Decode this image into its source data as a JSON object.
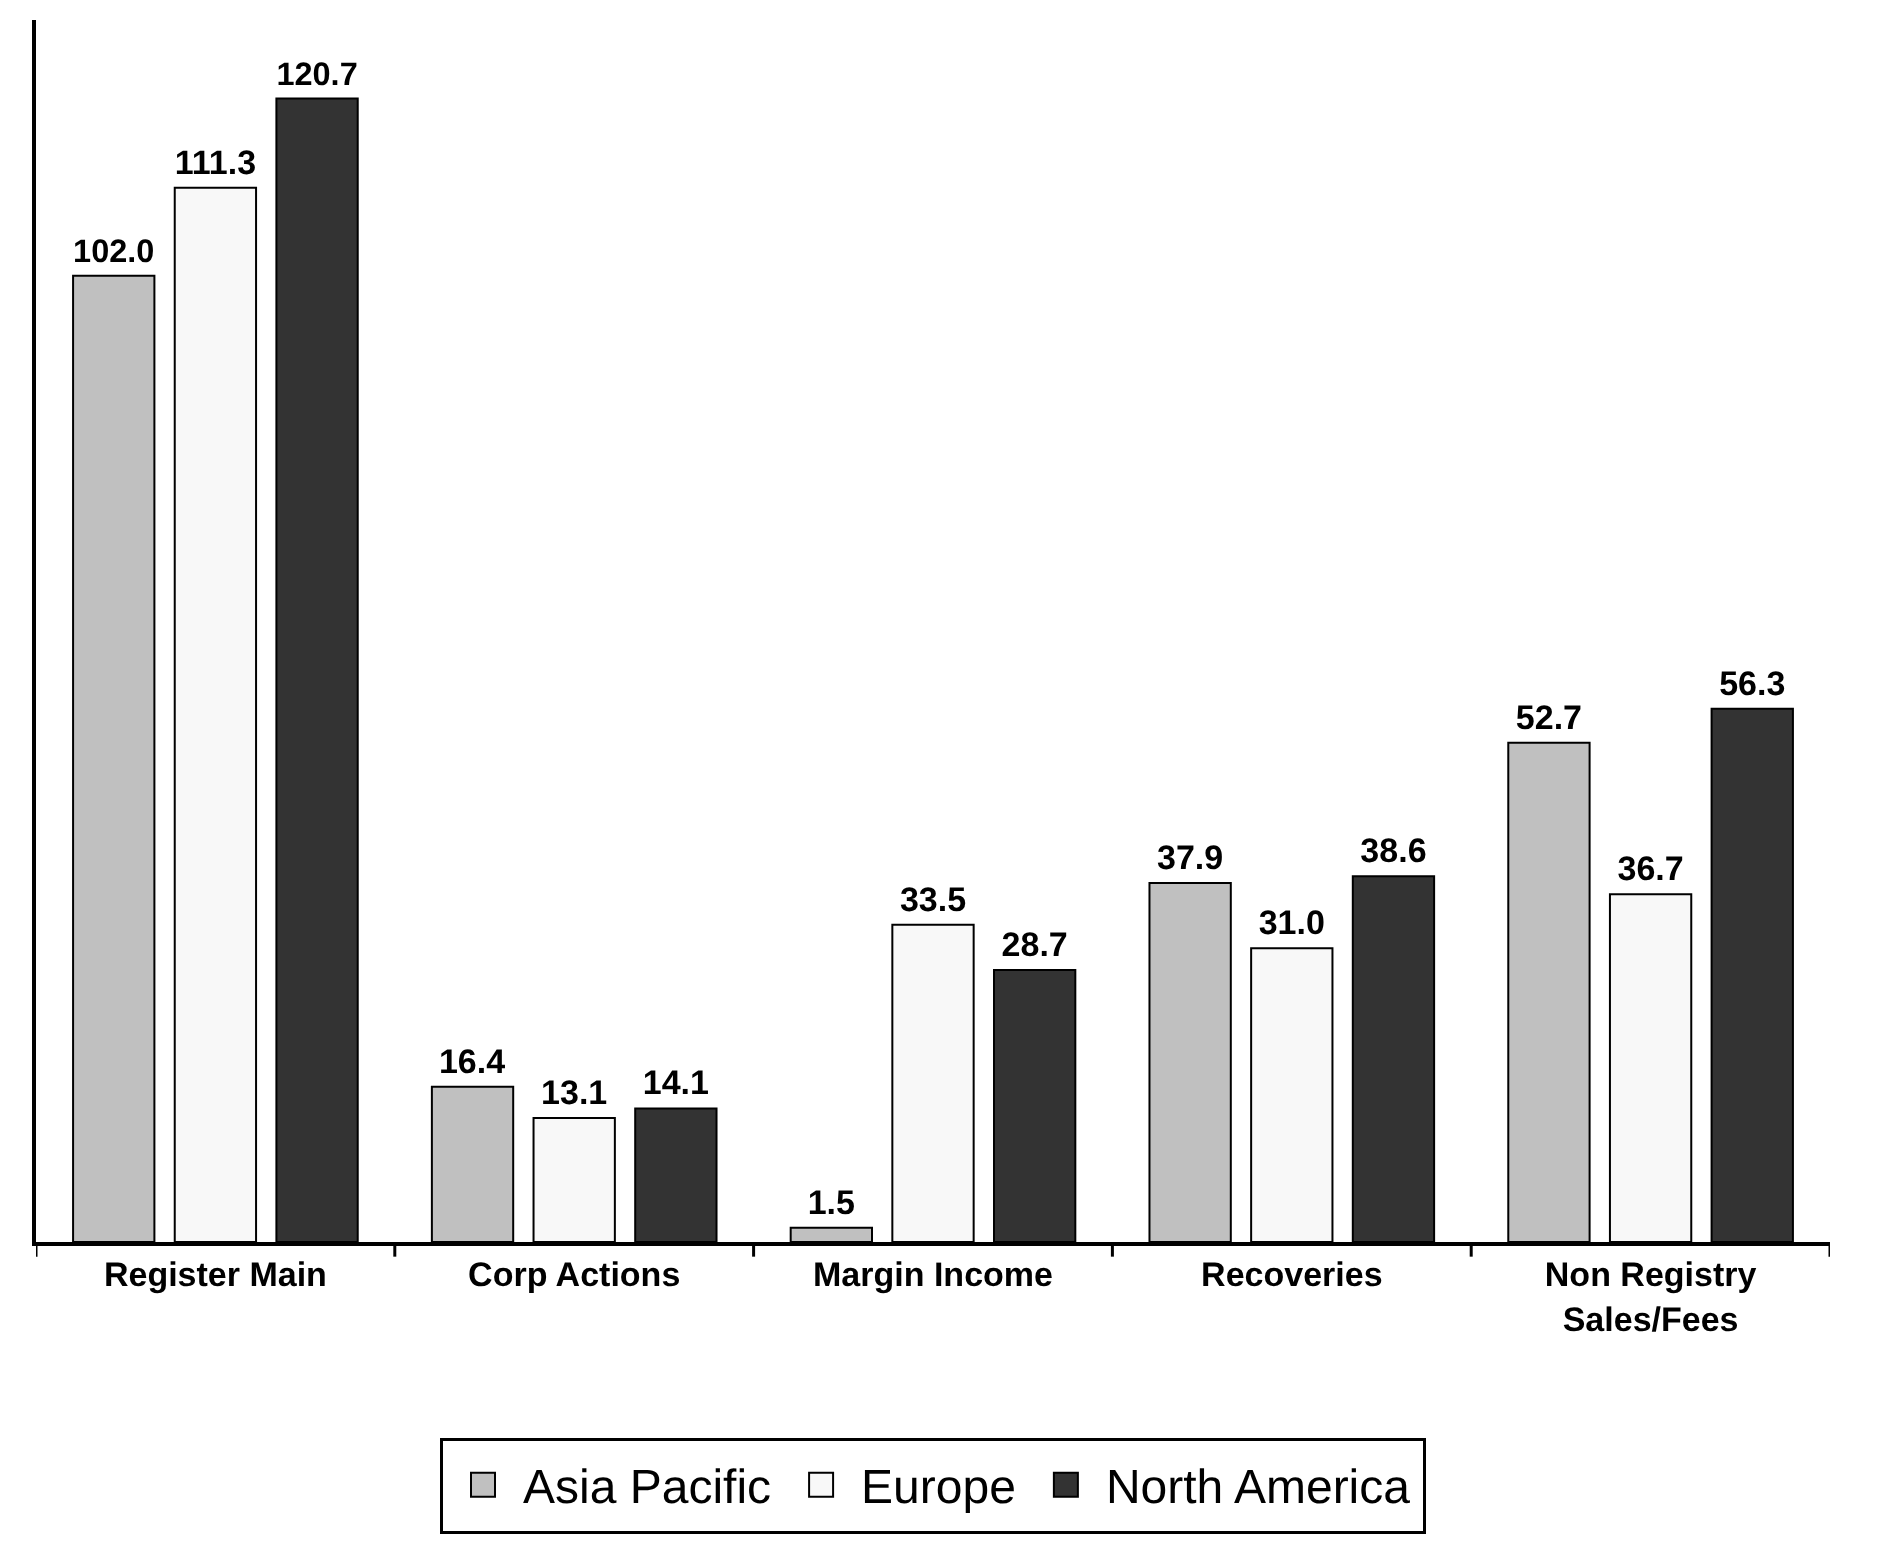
{
  "chart_data": {
    "type": "bar",
    "categories": [
      "Register Main",
      "Corp Actions",
      "Margin Income",
      "Recoveries",
      "Non Registry\nSales/Fees"
    ],
    "series": [
      {
        "name": "Asia Pacific",
        "color": "#c0c0c0",
        "values": [
          102.0,
          16.4,
          1.5,
          37.9,
          52.7
        ],
        "value_labels": [
          "102.0",
          "16.4",
          "1.5",
          "37.9",
          "52.7"
        ]
      },
      {
        "name": "Europe",
        "color": "#f8f8f8",
        "values": [
          111.3,
          13.1,
          33.5,
          31.0,
          36.7
        ],
        "value_labels": [
          "111.3",
          "13.1",
          "33.5",
          "31.0",
          "36.7"
        ]
      },
      {
        "name": "North America",
        "color": "#333333",
        "values": [
          120.7,
          14.1,
          28.7,
          38.6,
          56.3
        ],
        "value_labels": [
          "120.7",
          "14.1",
          "28.7",
          "38.6",
          "56.3"
        ]
      }
    ],
    "ylim": [
      0,
      129
    ],
    "tick_labels": "x",
    "grid": false,
    "legend": "bottom"
  }
}
